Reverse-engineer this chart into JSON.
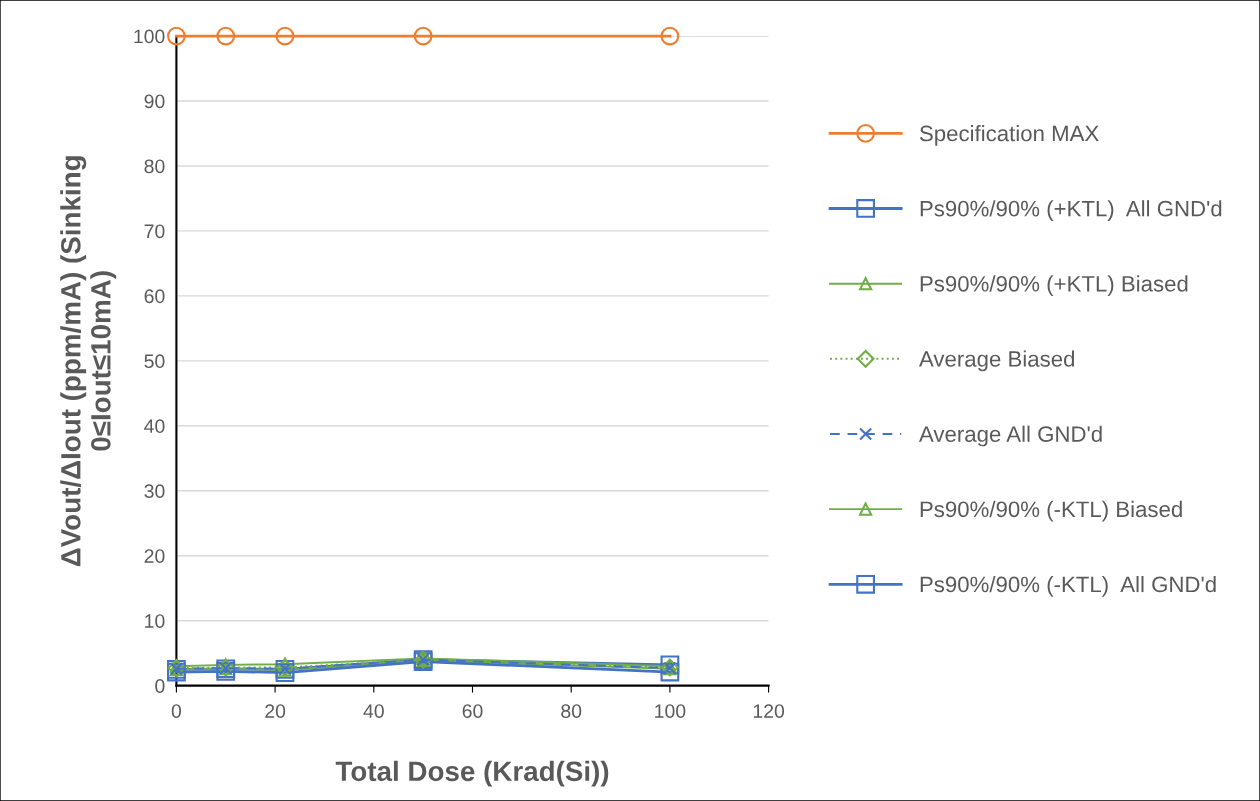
{
  "chart_data": {
    "type": "line",
    "xlabel": "Total Dose (Krad(Si))",
    "ylabel": "ΔVout/ΔIout (ppm/mA) (Sinking\n0≤Iout≤10mA)",
    "x": [
      0,
      10,
      22,
      50,
      100
    ],
    "xlim": [
      0,
      120
    ],
    "xticks": [
      0,
      20,
      40,
      60,
      80,
      100,
      120
    ],
    "ylim": [
      0,
      100
    ],
    "yticks": [
      0,
      10,
      20,
      30,
      40,
      50,
      60,
      70,
      80,
      90,
      100
    ],
    "grid": "y",
    "legend": "right",
    "series": [
      {
        "name": "Specification MAX",
        "color": "#ed7d31",
        "marker": "circle",
        "line_style": "solid",
        "values": [
          100,
          100,
          100,
          100,
          100
        ]
      },
      {
        "name": "Ps90%/90% (+KTL)  All GND'd",
        "color": "#4472c4",
        "marker": "square",
        "line_style": "solid",
        "values": [
          2.5,
          2.6,
          2.5,
          4.0,
          3.2
        ]
      },
      {
        "name": "Ps90%/90% (+KTL) Biased",
        "color": "#70ad47",
        "marker": "triangle",
        "line_style": "solid",
        "values": [
          3.0,
          3.2,
          3.3,
          4.2,
          3.0
        ]
      },
      {
        "name": "Average Biased",
        "color": "#70ad47",
        "marker": "diamond",
        "line_style": "dotted",
        "values": [
          2.7,
          2.8,
          2.8,
          4.0,
          2.8
        ]
      },
      {
        "name": "Average All GND'd",
        "color": "#4472c4",
        "marker": "cross",
        "line_style": "dashed",
        "values": [
          2.6,
          2.7,
          2.6,
          4.0,
          2.7
        ]
      },
      {
        "name": "Ps90%/90% (-KTL) Biased",
        "color": "#70ad47",
        "marker": "triangle",
        "line_style": "solid",
        "values": [
          2.5,
          2.6,
          2.4,
          3.9,
          2.6
        ]
      },
      {
        "name": "Ps90%/90% (-KTL)  All GND'd",
        "color": "#4472c4",
        "marker": "square",
        "line_style": "solid",
        "values": [
          2.1,
          2.2,
          2.0,
          3.7,
          2.1
        ]
      }
    ]
  }
}
